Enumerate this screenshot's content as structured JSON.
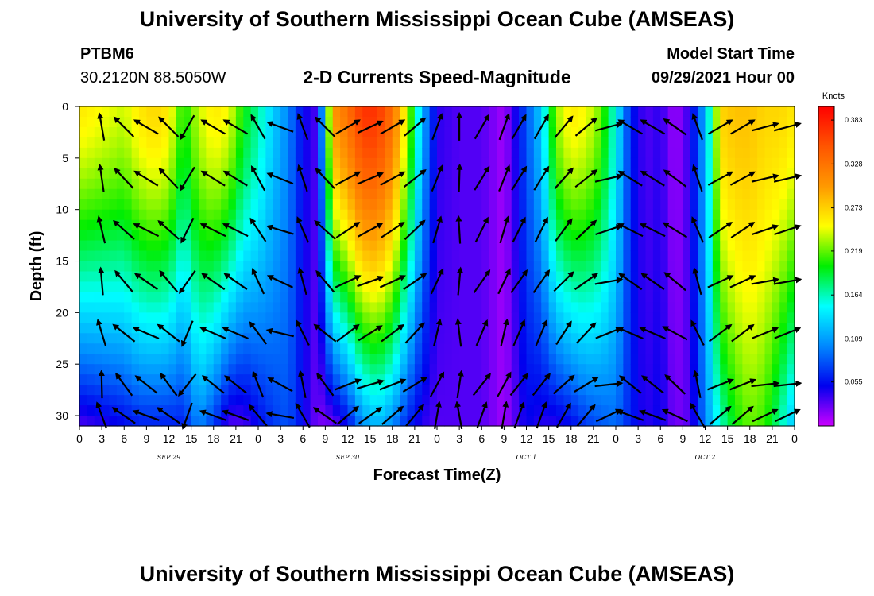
{
  "header": {
    "title": "University of Southern Mississippi Ocean Cube (AMSEAS)",
    "station_id": "PTBM6",
    "station_coords": "30.2120N  88.5050W",
    "subtitle": "2-D Currents Speed-Magnitude",
    "model_start_label": "Model Start Time",
    "model_start_value": "09/29/2021 Hour 00"
  },
  "footer": {
    "title": "University of Southern Mississippi Ocean Cube (AMSEAS)"
  },
  "chart_data": {
    "type": "heatmap",
    "title": "2-D Currents Speed-Magnitude",
    "xlabel": "Forecast Time(Z)",
    "ylabel": "Depth (ft)",
    "xlim": [
      0,
      96
    ],
    "ylim": [
      31,
      0
    ],
    "x_tick_labels": [
      "0",
      "3",
      "6",
      "9",
      "12",
      "15",
      "18",
      "21",
      "0",
      "3",
      "6",
      "9",
      "12",
      "15",
      "18",
      "21",
      "0",
      "3",
      "6",
      "9",
      "12",
      "15",
      "18",
      "21",
      "0",
      "3",
      "6",
      "9",
      "12",
      "15",
      "18",
      "21",
      "0"
    ],
    "date_labels": [
      "SEP 29",
      "SEP 30",
      "OCT 1",
      "OCT 2"
    ],
    "y_ticks": [
      0,
      5,
      10,
      15,
      20,
      25,
      30
    ],
    "colorbar": {
      "label": "Knots",
      "min": 0,
      "max": 0.4,
      "ticks": [
        "0.383",
        "0.328",
        "0.273",
        "0.219",
        "0.164",
        "0.109",
        "0.055"
      ],
      "colors": [
        "#cc00ff",
        "#0000ee",
        "#0088ff",
        "#00ffff",
        "#00ee00",
        "#ffff00",
        "#ff9900",
        "#ff5500",
        "#ff0000"
      ]
    },
    "speed_profile": {
      "hours": [
        0,
        3,
        6,
        8,
        10,
        12,
        14,
        16,
        18,
        20,
        22,
        24,
        26,
        28,
        30,
        32,
        34,
        36,
        38,
        40,
        42,
        44,
        46,
        48,
        51,
        54,
        57,
        60,
        62,
        64,
        66,
        68,
        70,
        72,
        74,
        76,
        78,
        80,
        82,
        84,
        86,
        88,
        90,
        92,
        94,
        96
      ],
      "surface": [
        0.26,
        0.25,
        0.24,
        0.26,
        0.27,
        0.26,
        0.2,
        0.24,
        0.26,
        0.25,
        0.2,
        0.17,
        0.13,
        0.1,
        0.05,
        0.03,
        0.3,
        0.33,
        0.37,
        0.37,
        0.33,
        0.24,
        0.12,
        0.04,
        0.03,
        0.03,
        0.01,
        0.08,
        0.13,
        0.23,
        0.26,
        0.25,
        0.22,
        0.15,
        0.06,
        0.03,
        0.04,
        0.01,
        0.04,
        0.12,
        0.27,
        0.28,
        0.28,
        0.27,
        0.27,
        0.26
      ],
      "bottom": [
        0.03,
        0.04,
        0.05,
        0.06,
        0.06,
        0.06,
        0.06,
        0.1,
        0.07,
        0.03,
        0.03,
        0.05,
        0.07,
        0.08,
        0.05,
        0.02,
        0.02,
        0.05,
        0.1,
        0.12,
        0.1,
        0.06,
        0.04,
        0.03,
        0.03,
        0.03,
        0.01,
        0.05,
        0.04,
        0.04,
        0.05,
        0.07,
        0.08,
        0.09,
        0.06,
        0.04,
        0.05,
        0.02,
        0.03,
        0.1,
        0.16,
        0.2,
        0.22,
        0.21,
        0.17,
        0.12
      ],
      "shape_exponent": 1.4
    },
    "vectors": {
      "description": "direction of current arrows (math angle degrees, 0=east, 90=north)",
      "hours": [
        3,
        6,
        9,
        12,
        14.5,
        18,
        21,
        24,
        27,
        30,
        33,
        36,
        39,
        42,
        45,
        48,
        51,
        54,
        57,
        59,
        62,
        65,
        68,
        71,
        74,
        77,
        80,
        83,
        86,
        89,
        92,
        95
      ],
      "depths": [
        2,
        7,
        12,
        17,
        22,
        27,
        30
      ],
      "base_angle": [
        100,
        135,
        150,
        135,
        -120,
        150,
        150,
        120,
        160,
        110,
        135,
        30,
        25,
        30,
        40,
        70,
        90,
        60,
        70,
        60,
        60,
        50,
        40,
        15,
        150,
        150,
        145,
        110,
        30,
        30,
        15,
        15
      ],
      "length_px": 34
    }
  }
}
